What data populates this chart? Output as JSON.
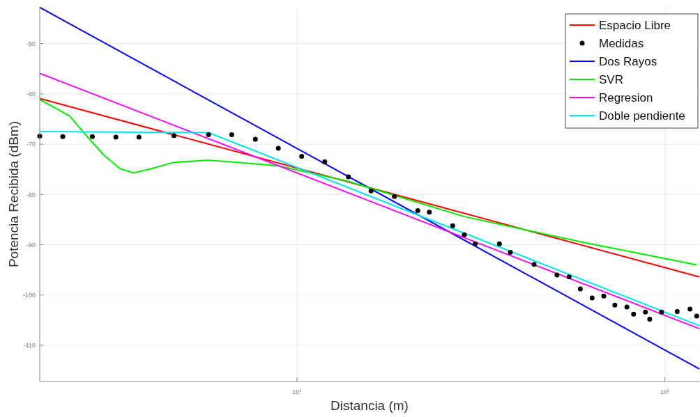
{
  "chart_data": {
    "type": "line",
    "xlabel": "Distancia (m)",
    "ylabel": "Potencia Recibida (dBm)",
    "log": "x",
    "xlim": [
      2,
      124
    ],
    "xticks": [
      {
        "value": 10,
        "label": "10$^{1}$"
      },
      {
        "value": 100,
        "label": "10$^{2}$"
      }
    ],
    "ylim": [
      -117.2,
      -42.7
    ],
    "yticks": [
      -50,
      -60,
      -70,
      -80,
      -90,
      -100,
      -110
    ],
    "grid": true,
    "legend": "top right",
    "series": [
      {
        "name": "Espacio Libre",
        "color": "#ff0000",
        "x": [
          2,
          124
        ],
        "values": [
          -60.9,
          -96.4
        ]
      },
      {
        "name": "Medidas",
        "type": "scatter",
        "marker": "circle",
        "color": "#000000",
        "x": [
          2.0,
          2.31,
          2.78,
          3.22,
          3.72,
          4.63,
          5.75,
          6.65,
          7.71,
          8.9,
          10.3,
          11.9,
          13.8,
          15.9,
          18.4,
          21.3,
          22.9,
          26.5,
          28.5,
          30.5,
          35.5,
          38.0,
          44.1,
          50.9,
          54.9,
          58.9,
          63.4,
          68.2,
          73.1,
          78.8,
          82.2,
          88.5,
          90.9,
          97.9,
          108,
          117,
          122
        ],
        "values": [
          -68.4,
          -68.5,
          -68.5,
          -68.6,
          -68.6,
          -68.3,
          -68.1,
          -68.1,
          -69.0,
          -70.8,
          -72.4,
          -73.5,
          -76.5,
          -79.3,
          -80.4,
          -83.2,
          -83.5,
          -86.2,
          -88.0,
          -89.8,
          -89.8,
          -91.5,
          -93.9,
          -96.0,
          -96.4,
          -98.8,
          -100.6,
          -100.2,
          -102.0,
          -102.4,
          -103.8,
          -103.4,
          -104.8,
          -103.4,
          -103.3,
          -102.8,
          -104.2
        ]
      },
      {
        "name": "Dos Rayos",
        "color": "#0000ff",
        "x": [
          2,
          124
        ],
        "values": [
          -42.8,
          -114.7
        ]
      },
      {
        "name": "SVR",
        "color": "#00ee00",
        "x": [
          2.0,
          2.41,
          2.7,
          2.99,
          3.31,
          3.6,
          4.01,
          4.63,
          5.75,
          6.65,
          8.9,
          13.8,
          28.5,
          58.9,
          122
        ],
        "values": [
          -61.1,
          -64.4,
          -68.6,
          -72.2,
          -74.9,
          -75.7,
          -74.9,
          -73.6,
          -73.2,
          -73.5,
          -74.3,
          -77.4,
          -84.4,
          -89.4,
          -94.0
        ]
      },
      {
        "name": "Regresion",
        "color": "#ff00ff",
        "x": [
          2,
          124
        ],
        "values": [
          -55.9,
          -106.7
        ]
      },
      {
        "name": "Doble pendiente",
        "color": "#00e5ee",
        "x": [
          2,
          5.75,
          124
        ],
        "values": [
          -67.5,
          -67.7,
          -106.1
        ]
      }
    ]
  }
}
